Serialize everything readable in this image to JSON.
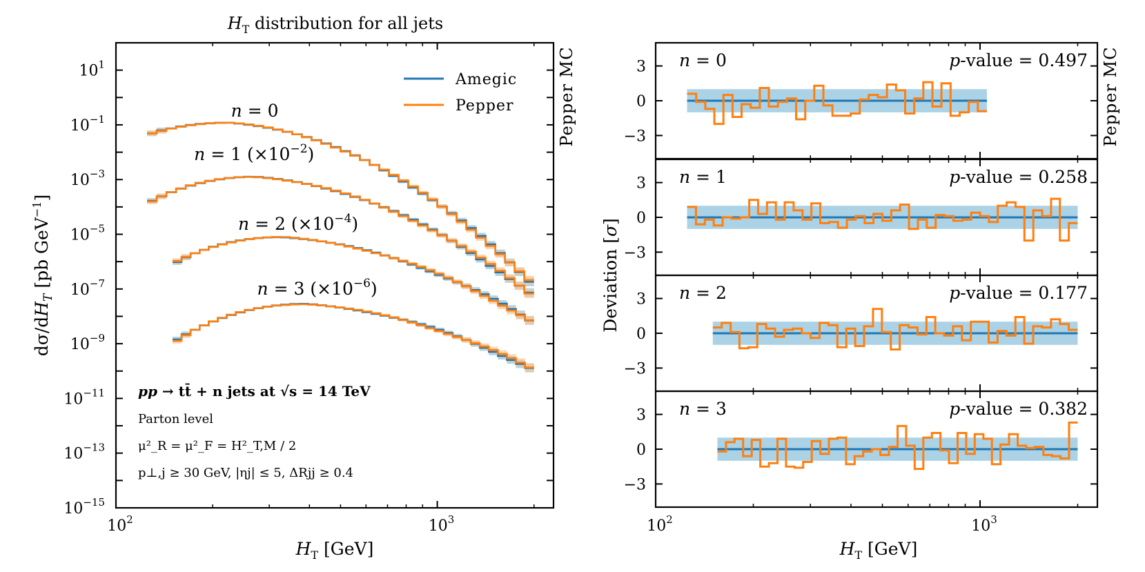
{
  "chart_data": [
    {
      "type": "line",
      "title": "H_T distribution for all jets",
      "title_parts": {
        "var": "H",
        "sub": "T",
        "rest": " distribution for all jets"
      },
      "xlabel": "H_T [GeV]",
      "ylabel": "dσ/dH_T [pb GeV^-1]",
      "ylabel_parts": {
        "a": "dσ/d",
        "b": "H",
        "c": "T",
        "d": " [pb GeV",
        "e": "−1",
        "f": "]"
      },
      "xscale": "log",
      "yscale": "log",
      "xlim": [
        100,
        2300
      ],
      "ylim_exp": [
        -15,
        2
      ],
      "x_tick_labels": [
        {
          "base": "10",
          "exp": "2",
          "value": 100
        },
        {
          "base": "10",
          "exp": "3",
          "value": 1000
        }
      ],
      "y_tick_labels": [
        {
          "base": "10",
          "exp": "1",
          "e": 1
        },
        {
          "base": "10",
          "exp": "−1",
          "e": -1
        },
        {
          "base": "10",
          "exp": "−3",
          "e": -3
        },
        {
          "base": "10",
          "exp": "−5",
          "e": -5
        },
        {
          "base": "10",
          "exp": "−7",
          "e": -7
        },
        {
          "base": "10",
          "exp": "−9",
          "e": -9
        },
        {
          "base": "10",
          "exp": "−11",
          "e": -11
        },
        {
          "base": "10",
          "exp": "−13",
          "e": -13
        },
        {
          "base": "10",
          "exp": "−15",
          "e": -15
        }
      ],
      "side_label": "Pepper MC",
      "legend": {
        "position": "top-right",
        "entries": [
          "Amegic",
          "Pepper"
        ]
      },
      "colors": {
        "amegic": "#1f77b4",
        "pepper": "#ff7f0e",
        "amegic_band": "#9ecae1",
        "pepper_band": "#fdc590"
      },
      "curves": [
        {
          "n": 0,
          "label": "n = 0",
          "scale": "",
          "label_pos": [
            228,
            0.2
          ],
          "xmin": 125,
          "xmax": 2000,
          "xpeak": 225,
          "peak_log": -0.92,
          "rise": 2.85,
          "fall": 5.2
        },
        {
          "n": 1,
          "label": "n = 1",
          "scale": "(×10",
          "scale_exp": "−2",
          "label_pos": [
            175,
            0.0052
          ],
          "xmin": 125,
          "xmax": 2000,
          "xpeak": 270,
          "peak_log": -2.9,
          "rise": 3.45,
          "fall": 4.4
        },
        {
          "n": 2,
          "label": "n = 2",
          "scale": "(×10",
          "scale_exp": "−4",
          "label_pos": [
            240,
            1.45e-05
          ],
          "xmin": 150,
          "xmax": 2000,
          "xpeak": 330,
          "peak_log": -5.1,
          "rise": 3.3,
          "fall": 3.7
        },
        {
          "n": 3,
          "label": "n = 3",
          "scale": "(×10",
          "scale_exp": "−6",
          "label_pos": [
            275,
            6.2e-08
          ],
          "xmin": 150,
          "xmax": 2000,
          "xpeak": 390,
          "peak_log": -7.55,
          "rise": 3.1,
          "fall": 3.3
        }
      ],
      "annotations": {
        "process_a": "pp",
        "process_b": " → t",
        "process_c": "t̄",
        "process_d": " + n jets at √s = 14 TeV",
        "level": "Parton level",
        "scales": "μ²_R = μ²_F = H²_T,M / 2",
        "cuts": "p⊥,j ≥ 30 GeV, |ηj| ≤ 5, ΔRjj ≥ 0.4"
      }
    },
    {
      "type": "line",
      "title": "",
      "xlabel": "H_T [GeV]",
      "ylabel": "Deviation [σ]",
      "ylabel_parts": {
        "a": "Deviation [",
        "b": "σ",
        "c": "]"
      },
      "xscale": "log",
      "xlim": [
        100,
        2300
      ],
      "ylim": [
        -5,
        5
      ],
      "y_ticks": [
        3,
        0,
        -3
      ],
      "y_tick_labels": [
        "3",
        "0",
        "−3"
      ],
      "x_tick_labels": [
        {
          "base": "10",
          "exp": "2",
          "value": 100
        },
        {
          "base": "10",
          "exp": "3",
          "value": 1000
        }
      ],
      "side_label": "Pepper MC",
      "band": [
        -1,
        1
      ],
      "panels": [
        {
          "n": 0,
          "label_var": "n",
          "label_rest": " = 0",
          "p_label": "p",
          "p_text": "-value = 0.497",
          "p_value": 0.497,
          "xmin": 125,
          "xmax": 1050,
          "deviations": [
            0.6,
            -0.1,
            -0.7,
            -2.0,
            0.5,
            -1.4,
            -0.3,
            -0.6,
            1.1,
            -0.5,
            -0.1,
            0.2,
            -1.6,
            0.0,
            1.3,
            -0.4,
            -1.3,
            -1.3,
            -1.1,
            0.1,
            0.5,
            0.3,
            1.4,
            0.9,
            -1.1,
            0.2,
            1.6,
            -0.5,
            1.5,
            -1.3,
            -1.0,
            -0.1,
            -0.9
          ]
        },
        {
          "n": 1,
          "label_var": "n",
          "label_rest": " = 1",
          "p_label": "p",
          "p_text": "-value = 0.258",
          "p_value": 0.258,
          "xmin": 125,
          "xmax": 2000,
          "deviations": [
            0.9,
            -0.6,
            -0.2,
            -0.7,
            0.0,
            -0.1,
            0.0,
            1.5,
            0.3,
            1.3,
            -0.2,
            1.3,
            0.6,
            -0.2,
            1.2,
            -0.5,
            -0.4,
            -0.9,
            -0.2,
            0.1,
            -0.5,
            0.3,
            -0.3,
            0.6,
            1.1,
            -1.0,
            -0.2,
            -0.9,
            0.2,
            0.1,
            -0.3,
            -0.2,
            0.4,
            0.1,
            -0.4,
            1.0,
            1.3,
            0.9,
            -2.0,
            0.6,
            0.1,
            1.6,
            -2.0,
            -0.5
          ]
        },
        {
          "n": 2,
          "label_var": "n",
          "label_rest": " = 2",
          "p_label": "p",
          "p_text": "-value = 0.177",
          "p_value": 0.177,
          "xmin": 150,
          "xmax": 2000,
          "deviations": [
            0.5,
            0.9,
            0.1,
            -1.3,
            -1.2,
            0.8,
            0.4,
            -0.3,
            0.3,
            0.4,
            0.0,
            -0.4,
            0.9,
            0.7,
            -1.2,
            0.4,
            -1.1,
            0.6,
            2.1,
            0.1,
            -1.4,
            0.7,
            0.5,
            -0.1,
            1.4,
            0.0,
            -0.2,
            0.6,
            -0.6,
            1.0,
            1.0,
            -0.8,
            0.2,
            -0.2,
            1.4,
            -0.9,
            0.6,
            0.5,
            1.2,
            0.8,
            0.3
          ]
        },
        {
          "n": 3,
          "label_var": "n",
          "label_rest": " = 3",
          "p_label": "p",
          "p_text": "-value = 0.382",
          "p_value": 0.382,
          "xmin": 155,
          "xmax": 2000,
          "deviations": [
            -0.2,
            0.6,
            0.9,
            -0.6,
            0.8,
            -1.5,
            -1.2,
            0.9,
            -1.5,
            -1.6,
            -1.1,
            0.7,
            -0.4,
            0.9,
            1.0,
            -1.3,
            -0.6,
            -0.2,
            0.0,
            -0.5,
            0.2,
            2.0,
            0.3,
            -1.7,
            1.0,
            1.4,
            -0.1,
            -1.2,
            1.4,
            -0.4,
            1.3,
            0.9,
            -1.3,
            0.4,
            1.3,
            0.3,
            0.1,
            0.2,
            -0.5,
            -0.6,
            -0.8,
            2.3
          ]
        }
      ]
    }
  ]
}
